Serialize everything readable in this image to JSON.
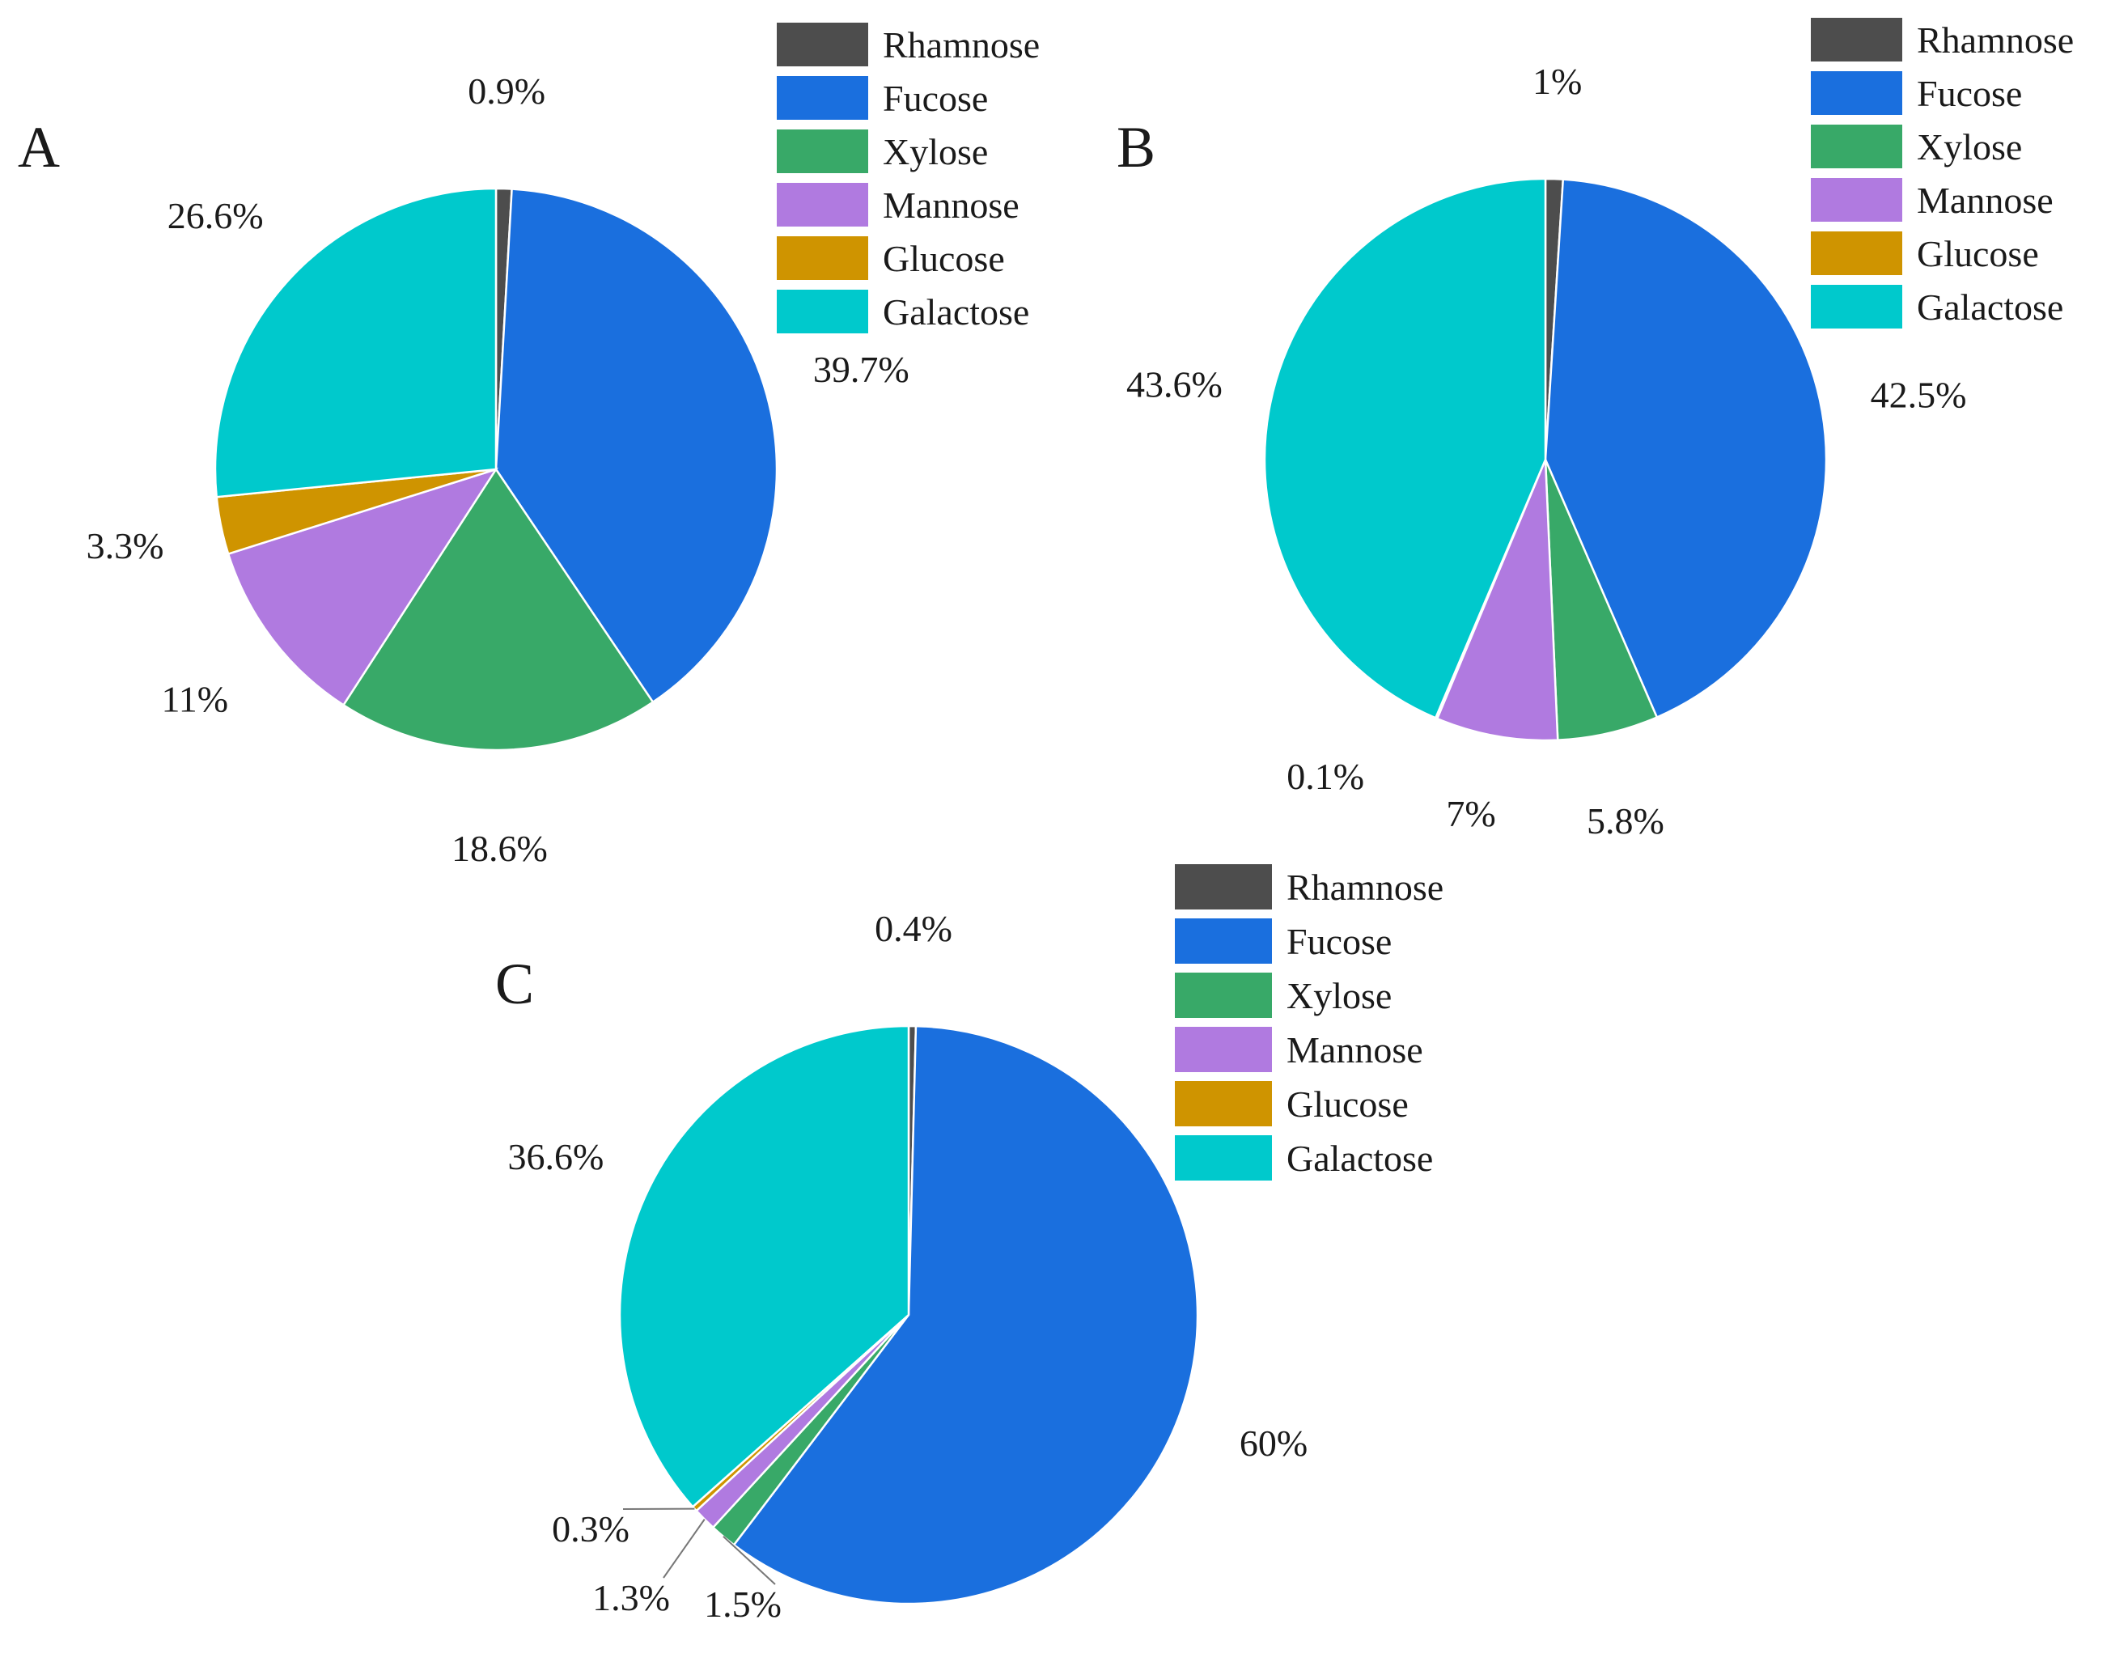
{
  "figure": {
    "colors": {
      "Rhamnose": "#4d4d4d",
      "Fucose": "#1a6fde",
      "Xylose": "#38a968",
      "Mannose": "#b07ae0",
      "Glucose": "#cf9400",
      "Galactose": "#00c9cc"
    }
  },
  "chart_data": [
    {
      "type": "pie",
      "panel": "A",
      "legend": [
        "Rhamnose",
        "Fucose",
        "Xylose",
        "Mannose",
        "Glucose",
        "Galactose"
      ],
      "slices": [
        {
          "name": "Rhamnose",
          "value": 0.9,
          "label": "0.9%"
        },
        {
          "name": "Fucose",
          "value": 39.7,
          "label": "39.7%"
        },
        {
          "name": "Xylose",
          "value": 18.6,
          "label": "18.6%"
        },
        {
          "name": "Mannose",
          "value": 11,
          "label": "11%"
        },
        {
          "name": "Glucose",
          "value": 3.3,
          "label": "3.3%"
        },
        {
          "name": "Galactose",
          "value": 26.6,
          "label": "26.6%"
        }
      ]
    },
    {
      "type": "pie",
      "panel": "B",
      "legend": [
        "Rhamnose",
        "Fucose",
        "Xylose",
        "Mannose",
        "Glucose",
        "Galactose"
      ],
      "slices": [
        {
          "name": "Rhamnose",
          "value": 1,
          "label": "1%"
        },
        {
          "name": "Fucose",
          "value": 42.5,
          "label": "42.5%"
        },
        {
          "name": "Xylose",
          "value": 5.8,
          "label": "5.8%"
        },
        {
          "name": "Mannose",
          "value": 7,
          "label": "7%"
        },
        {
          "name": "Glucose",
          "value": 0.1,
          "label": "0.1%"
        },
        {
          "name": "Galactose",
          "value": 43.6,
          "label": "43.6%"
        }
      ]
    },
    {
      "type": "pie",
      "panel": "C",
      "legend": [
        "Rhamnose",
        "Fucose",
        "Xylose",
        "Mannose",
        "Glucose",
        "Galactose"
      ],
      "slices": [
        {
          "name": "Rhamnose",
          "value": 0.4,
          "label": "0.4%"
        },
        {
          "name": "Fucose",
          "value": 60,
          "label": "60%"
        },
        {
          "name": "Xylose",
          "value": 1.5,
          "label": "1.5%"
        },
        {
          "name": "Mannose",
          "value": 1.3,
          "label": "1.3%"
        },
        {
          "name": "Glucose",
          "value": 0.3,
          "label": "0.3%"
        },
        {
          "name": "Galactose",
          "value": 36.6,
          "label": "36.6%"
        }
      ]
    }
  ]
}
